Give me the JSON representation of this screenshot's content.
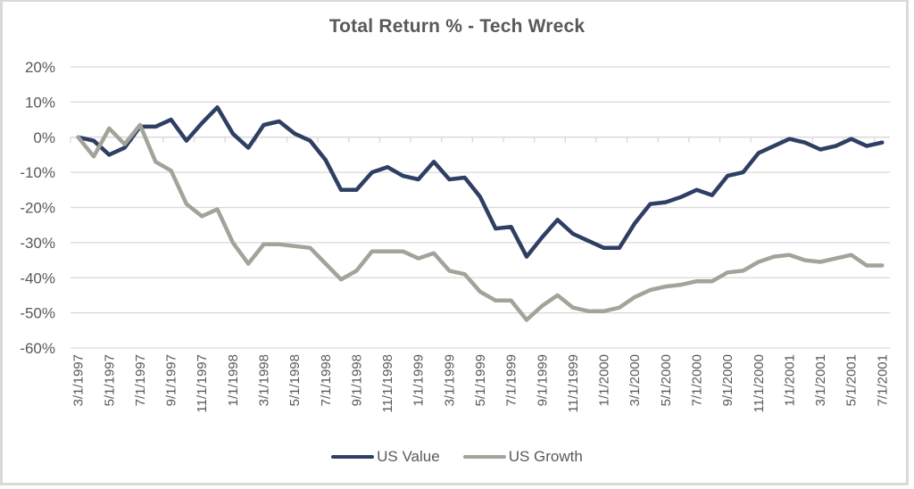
{
  "chart_data": {
    "type": "line",
    "title": "Total Return % - Tech Wreck",
    "xlabel": "",
    "ylabel": "",
    "ylim": [
      -60,
      20
    ],
    "yticks": [
      20,
      10,
      0,
      -10,
      -20,
      -30,
      -40,
      -50,
      -60
    ],
    "ytick_labels": [
      "20%",
      "10%",
      "0%",
      "-10%",
      "-20%",
      "-30%",
      "-40%",
      "-50%",
      "-60%"
    ],
    "grid": true,
    "legend_position": "bottom",
    "x": [
      "3/1/1997",
      "4/1/1997",
      "5/1/1997",
      "6/1/1997",
      "7/1/1997",
      "8/1/1997",
      "9/1/1997",
      "10/1/1997",
      "11/1/1997",
      "12/1/1997",
      "1/1/1998",
      "2/1/1998",
      "3/1/1998",
      "4/1/1998",
      "5/1/1998",
      "6/1/1998",
      "7/1/1998",
      "8/1/1998",
      "9/1/1998",
      "10/1/1998",
      "11/1/1998",
      "12/1/1998",
      "1/1/1999",
      "2/1/1999",
      "3/1/1999",
      "4/1/1999",
      "5/1/1999",
      "6/1/1999",
      "7/1/1999",
      "8/1/1999",
      "9/1/1999",
      "10/1/1999",
      "11/1/1999",
      "12/1/1999",
      "1/1/2000",
      "2/1/2000",
      "3/1/2000",
      "4/1/2000",
      "5/1/2000",
      "6/1/2000",
      "7/1/2000",
      "8/1/2000",
      "9/1/2000",
      "10/1/2000",
      "11/1/2000",
      "12/1/2000",
      "1/1/2001",
      "2/1/2001",
      "3/1/2001",
      "4/1/2001",
      "5/1/2001",
      "6/1/2001",
      "7/1/2001"
    ],
    "xtick_labels": [
      "3/1/1997",
      "5/1/1997",
      "7/1/1997",
      "9/1/1997",
      "11/1/1997",
      "1/1/1998",
      "3/1/1998",
      "5/1/1998",
      "7/1/1998",
      "9/1/1998",
      "11/1/1998",
      "1/1/1999",
      "3/1/1999",
      "5/1/1999",
      "7/1/1999",
      "9/1/1999",
      "11/1/1999",
      "1/1/2000",
      "3/1/2000",
      "5/1/2000",
      "7/1/2000",
      "9/1/2000",
      "11/1/2000",
      "1/1/2001",
      "3/1/2001",
      "5/1/2001",
      "7/1/2001"
    ],
    "series": [
      {
        "name": "US Value",
        "color": "#2e3f63",
        "values": [
          0,
          -1,
          -5,
          -3,
          3,
          3,
          5,
          -1,
          4,
          8.5,
          1,
          -3,
          3.5,
          4.5,
          1,
          -1,
          -6.5,
          -15,
          -15,
          -10,
          -8.5,
          -11,
          -12,
          -7,
          -12,
          -11.5,
          -17,
          -26,
          -25.5,
          -34,
          -28.5,
          -23.5,
          -27.5,
          -29.5,
          -31.5,
          -31.5,
          -24.5,
          -19,
          -18.5,
          -17,
          -15,
          -16.5,
          -11,
          -10,
          -4.5,
          -2.5,
          -0.5,
          -1.5,
          -3.5,
          -2.5,
          -0.5,
          -2.5,
          -1.5
        ]
      },
      {
        "name": "US Growth",
        "color": "#a3a39a",
        "values": [
          0,
          -5.5,
          2.5,
          -2,
          3.5,
          -7,
          -9.5,
          -19,
          -22.5,
          -20.5,
          -30,
          -36,
          -30.5,
          -30.5,
          -31,
          -31.5,
          -36,
          -40.5,
          -38,
          -32.5,
          -32.5,
          -32.5,
          -34.5,
          -33,
          -38,
          -39,
          -44,
          -46.5,
          -46.5,
          -52,
          -48,
          -45,
          -48.5,
          -49.5,
          -49.5,
          -48.5,
          -45.5,
          -43.5,
          -42.5,
          -42,
          -41,
          -41,
          -38.5,
          -38,
          -35.5,
          -34,
          -33.5,
          -35,
          -35.5,
          -34.5,
          -33.5,
          -36.5,
          -36.5
        ]
      }
    ]
  }
}
